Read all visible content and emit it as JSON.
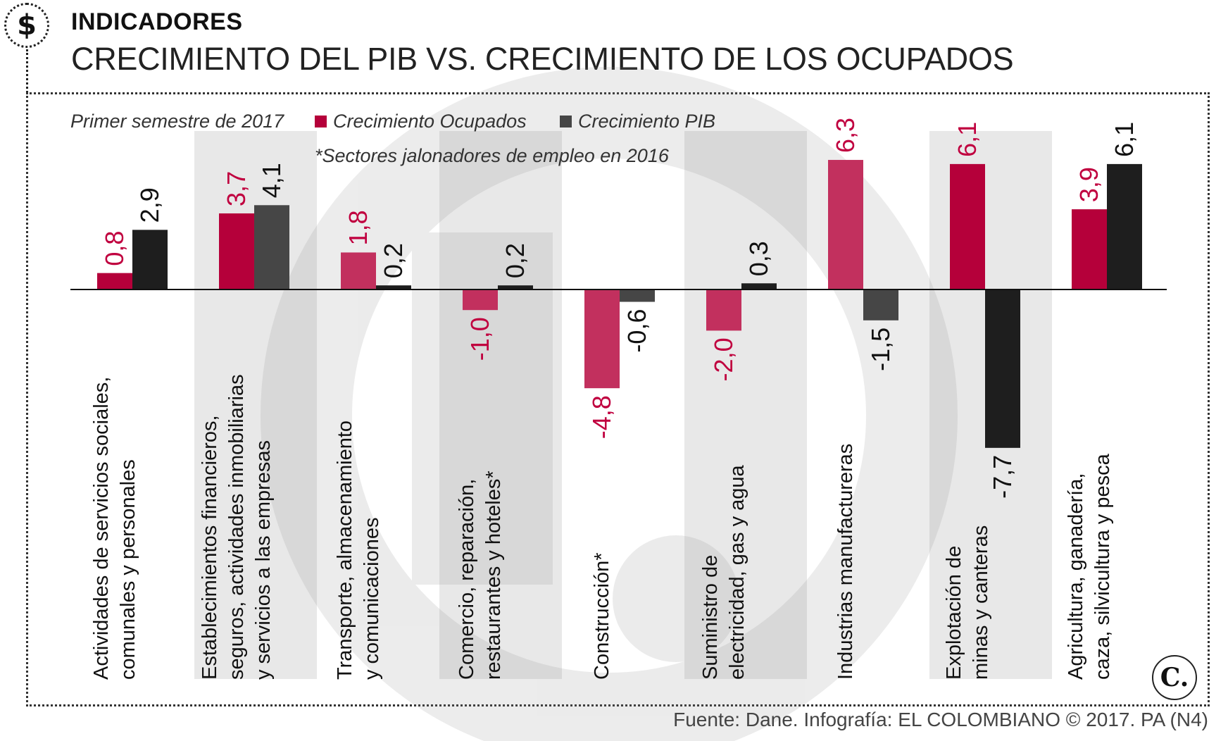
{
  "header": {
    "section": "INDICADORES",
    "title": "CRECIMIENTO DEL PIB VS. CRECIMIENTO DE LOS OCUPADOS",
    "logo_symbol": "$"
  },
  "legend": {
    "period": "Primer semestre de 2017",
    "ocupados": "Crecimiento Ocupados",
    "pib": "Crecimiento PIB",
    "note": "*Sectores jalonadores de empleo en 2016"
  },
  "source": "Fuente: Dane. Infografía: EL COLOMBIANO © 2017. PA (N4)",
  "badge": "C.",
  "colors": {
    "ocupados_dark": "#B5003A",
    "ocupados_light": "#C2305E",
    "pib_dark": "#1E1E1E",
    "pib_light": "#464646",
    "ocupados_label": "#C0003F",
    "band": "#E8E8E8"
  },
  "chart_data": {
    "type": "bar",
    "categories": [
      "Actividades de servicios sociales,|comunales y personales",
      "Establecimientos financieros,|seguros, actividades inmobiliarias|y servicios a las empresas",
      "Transporte, almacenamiento|y comunicaciones",
      "Comercio, reparación,|restaurantes y hoteles*",
      "Construcción*",
      "Suministro de|electricidad, gas y agua",
      "Industrias manufactureras",
      "Explotación de|minas y canteras",
      "Agricultura, ganadería,|caza, silvicultura y pesca"
    ],
    "series": [
      {
        "name": "Crecimiento Ocupados",
        "values": [
          0.8,
          3.7,
          1.8,
          -1.0,
          -4.8,
          -2.0,
          6.3,
          6.1,
          3.9
        ],
        "labels": [
          "0,8",
          "3,7",
          "1,8",
          "-1,0",
          "-4,8",
          "-2,0",
          "6,3",
          "6,1",
          "3,9"
        ]
      },
      {
        "name": "Crecimiento PIB",
        "values": [
          2.9,
          4.1,
          0.2,
          0.2,
          -0.6,
          0.3,
          -1.5,
          -7.7,
          6.1
        ],
        "labels": [
          "2,9",
          "4,1",
          "0,2",
          "0,2",
          "-0,6",
          "0,3",
          "-1,5",
          "-7,7",
          "6,1"
        ]
      }
    ],
    "legend_position": "top-left",
    "grid": false
  }
}
